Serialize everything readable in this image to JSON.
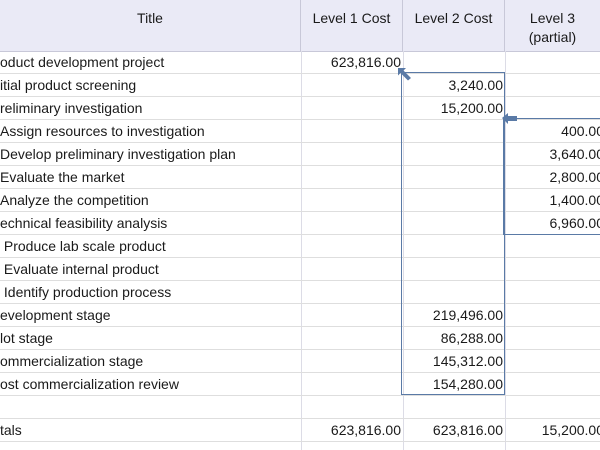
{
  "headers": {
    "title": "Title",
    "level1": "Level 1 Cost",
    "level2": "Level 2 Cost",
    "level3_line1": "Level 3",
    "level3_line2": "(partial)"
  },
  "rows": [
    {
      "title": "oduct development project",
      "l1": "623,816.00",
      "l2": "",
      "l3": ""
    },
    {
      "title": "itial product screening",
      "l1": "",
      "l2": "3,240.00",
      "l3": ""
    },
    {
      "title": "reliminary investigation",
      "l1": "",
      "l2": "15,200.00",
      "l3": ""
    },
    {
      "title": "Assign resources to investigation",
      "l1": "",
      "l2": "",
      "l3": "400.00"
    },
    {
      "title": "Develop preliminary investigation plan",
      "l1": "",
      "l2": "",
      "l3": "3,640.00"
    },
    {
      "title": "Evaluate the market",
      "l1": "",
      "l2": "",
      "l3": "2,800.00"
    },
    {
      "title": "Analyze the competition",
      "l1": "",
      "l2": "",
      "l3": "1,400.00"
    },
    {
      "title": "echnical feasibility analysis",
      "l1": "",
      "l2": "",
      "l3": "6,960.00"
    },
    {
      "title": " Produce lab scale product",
      "l1": "",
      "l2": "",
      "l3": ""
    },
    {
      "title": " Evaluate internal product",
      "l1": "",
      "l2": "",
      "l3": ""
    },
    {
      "title": " Identify production process",
      "l1": "",
      "l2": "",
      "l3": ""
    },
    {
      "title": "evelopment stage",
      "l1": "",
      "l2": "219,496.00",
      "l3": ""
    },
    {
      "title": "lot stage",
      "l1": "",
      "l2": "86,288.00",
      "l3": ""
    },
    {
      "title": "ommercialization stage",
      "l1": "",
      "l2": "145,312.00",
      "l3": ""
    },
    {
      "title": "ost commercialization review",
      "l1": "",
      "l2": "154,280.00",
      "l3": ""
    },
    {
      "title": "",
      "l1": "",
      "l2": "",
      "l3": ""
    },
    {
      "title": "tals",
      "l1": "623,816.00",
      "l2": "623,816.00",
      "l3": "15,200.00"
    }
  ],
  "colors": {
    "header_bg": "#eaeaf6",
    "box_border": "#5a7aa6",
    "arrow": "#5a7aa6"
  }
}
